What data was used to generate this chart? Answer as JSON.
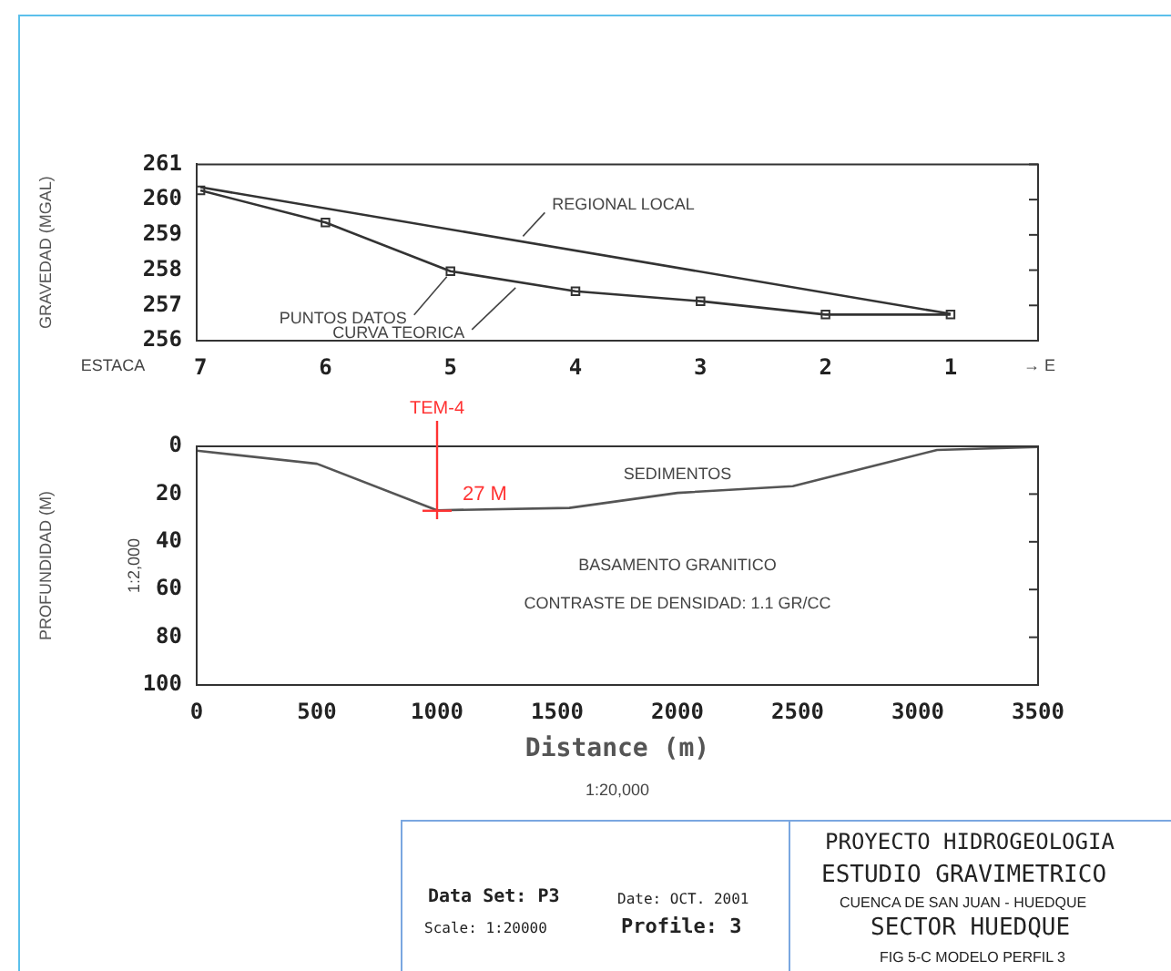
{
  "chart_data": [
    {
      "type": "line",
      "ylabel": "GRAVEDAD (MGAL)",
      "categories": [
        "7",
        "6",
        "5",
        "4",
        "3",
        "2",
        "1"
      ],
      "ylim": [
        256,
        261
      ],
      "yticks": [
        256,
        257,
        258,
        259,
        260,
        261
      ],
      "grid": false,
      "legend": false,
      "annotations": [
        "ESTACA",
        "→ E"
      ],
      "series": [
        {
          "name": "REGIONAL LOCAL",
          "type": "line",
          "marker": "none",
          "color": "#333333",
          "x": [
            "7",
            "1"
          ],
          "values": [
            260.35,
            256.76
          ]
        },
        {
          "name": "PUNTOS DATOS",
          "type": "scatter",
          "marker": "square",
          "color": "#333333",
          "values": [
            260.26,
            259.35,
            257.97,
            257.4,
            257.12,
            256.74,
            256.74
          ]
        },
        {
          "name": "CURVA TEORICA",
          "type": "line",
          "marker": "none",
          "color": "#333333",
          "values": [
            260.26,
            259.35,
            257.97,
            257.4,
            257.12,
            256.74,
            256.74
          ]
        }
      ]
    },
    {
      "type": "line",
      "xlabel": "Distance (m)",
      "ylabel": "PROFUNDIDAD (M)",
      "x": [
        0,
        500,
        1000,
        1550,
        2000,
        2480,
        3080,
        3500
      ],
      "xlim": [
        0,
        3500
      ],
      "xticks": [
        0,
        500,
        1000,
        1500,
        2000,
        2500,
        3000,
        3500
      ],
      "ylim": [
        100,
        0
      ],
      "yticks": [
        0,
        20,
        40,
        60,
        80,
        100
      ],
      "grid": false,
      "legend": false,
      "series": [
        {
          "color": "#555555",
          "values": [
            1.8,
            7.3,
            26.8,
            25.8,
            19.5,
            16.7,
            1.5,
            0.3
          ]
        }
      ],
      "ref_lines": [
        {
          "axis": "x",
          "value": 1000,
          "label": "TEM-4",
          "color": "#ff3333"
        }
      ],
      "annotations": [
        {
          "text": "27 M",
          "x": 1000,
          "y": 27
        },
        "SEDIMENTOS",
        "BASAMENTO GRANITICO",
        "CONTRASTE DE DENSIDAD: 1.1 GR/CC",
        "1:2,000",
        "1:20,000"
      ]
    },
    {
      "type": "other",
      "annotations": [
        "Data Set: P3",
        "Date: OCT. 2001",
        "Scale: 1:20000",
        "Profile: 3",
        "PROYECTO HIDROGEOLOGIA",
        "ESTUDIO GRAVIMETRICO",
        "CUENCA DE SAN JUAN - HUEDQUE",
        "SECTOR HUEDQUE",
        "FIG 5-C  MODELO PERFIL 3"
      ]
    }
  ]
}
